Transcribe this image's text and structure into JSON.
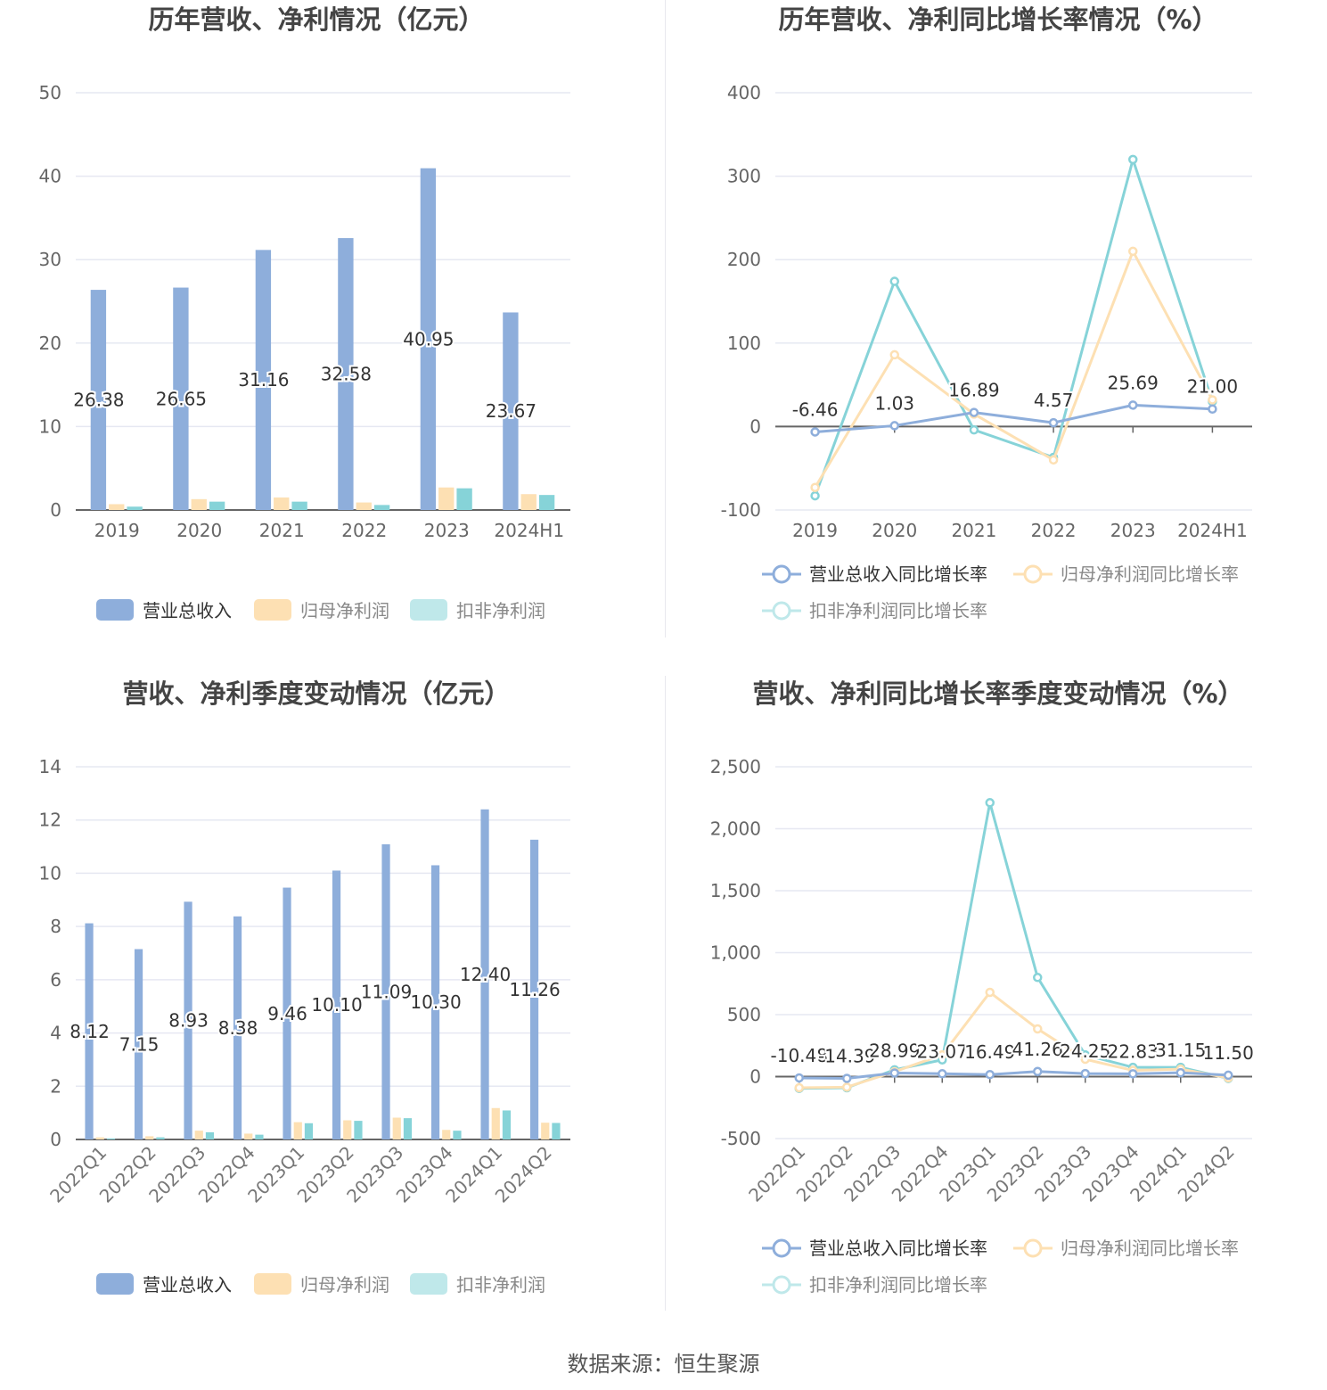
{
  "charts": {
    "annual_amount": {
      "title": "历年营收、净利情况（亿元）",
      "yticks": [
        "0",
        "10",
        "20",
        "30",
        "40",
        "50"
      ]
    },
    "annual_growth": {
      "title": "历年营收、净利同比增长率情况（%）",
      "yticks": [
        "-100",
        "0",
        "100",
        "200",
        "300",
        "400"
      ]
    },
    "quarter_amount": {
      "title": "营收、净利季度变动情况（亿元）",
      "yticks": [
        "0",
        "2",
        "4",
        "6",
        "8",
        "10",
        "12",
        "14"
      ]
    },
    "quarter_growth": {
      "title": "营收、净利同比增长率季度变动情况（%）",
      "yticks": [
        "-500",
        "0",
        "500",
        "1,000",
        "1,500",
        "2,000",
        "2,500"
      ]
    }
  },
  "legend": {
    "amount": [
      "营业总收入",
      "归母净利润",
      "扣非净利润"
    ],
    "growth": [
      "营业总收入同比增长率",
      "归母净利润同比增长率",
      "扣非净利润同比增长率"
    ]
  },
  "colors": {
    "revenue": "#8eaedb",
    "net_profit": "#fde0b3",
    "deducted_profit": "#86d3d8",
    "grid": "#e6e8f2",
    "axis": "#666666"
  },
  "footer": {
    "source": "数据来源：恒生聚源"
  },
  "chart_data": [
    {
      "type": "bar",
      "title": "历年营收、净利情况（亿元）",
      "categories": [
        "2019",
        "2020",
        "2021",
        "2022",
        "2023",
        "2024H1"
      ],
      "ylim": [
        0,
        50
      ],
      "series": [
        {
          "name": "营业总收入",
          "values": [
            26.38,
            26.65,
            31.16,
            32.58,
            40.95,
            23.67
          ],
          "labels": [
            "26.38",
            "26.65",
            "31.16",
            "32.58",
            "40.95",
            "23.67"
          ]
        },
        {
          "name": "归母净利润",
          "values": [
            0.7,
            1.3,
            1.5,
            0.9,
            2.7,
            1.9
          ]
        },
        {
          "name": "扣非净利润",
          "values": [
            0.4,
            1.0,
            1.0,
            0.6,
            2.6,
            1.8
          ]
        }
      ],
      "grid": true,
      "legend": "bottom"
    },
    {
      "type": "line",
      "title": "历年营收、净利同比增长率情况（%）",
      "categories": [
        "2019",
        "2020",
        "2021",
        "2022",
        "2023",
        "2024H1"
      ],
      "ylim": [
        -100,
        400
      ],
      "series": [
        {
          "name": "营业总收入同比增长率",
          "values": [
            -6.46,
            1.03,
            16.89,
            4.57,
            25.69,
            21.0
          ],
          "labels": [
            "-6.46",
            "1.03",
            "16.89",
            "4.57",
            "25.69",
            "21.00"
          ]
        },
        {
          "name": "归母净利润同比增长率",
          "values": [
            -73,
            86,
            15,
            -40,
            210,
            32
          ]
        },
        {
          "name": "扣非净利润同比增长率",
          "values": [
            -83,
            174,
            -4,
            -37,
            320,
            30
          ]
        }
      ],
      "grid": true,
      "legend": "bottom"
    },
    {
      "type": "bar",
      "title": "营收、净利季度变动情况（亿元）",
      "categories": [
        "2022Q1",
        "2022Q2",
        "2022Q3",
        "2022Q4",
        "2023Q1",
        "2023Q2",
        "2023Q3",
        "2023Q4",
        "2024Q1",
        "2024Q2"
      ],
      "ylim": [
        0,
        14
      ],
      "series": [
        {
          "name": "营业总收入",
          "values": [
            8.12,
            7.15,
            8.93,
            8.38,
            9.46,
            10.1,
            11.09,
            10.3,
            12.4,
            11.26
          ],
          "labels": [
            "8.12",
            "7.15",
            "8.93",
            "8.38",
            "9.46",
            "10.10",
            "11.09",
            "10.30",
            "12.40",
            "11.26"
          ]
        },
        {
          "name": "归母净利润",
          "values": [
            0.08,
            0.12,
            0.33,
            0.22,
            0.65,
            0.72,
            0.82,
            0.36,
            1.18,
            0.63
          ]
        },
        {
          "name": "扣非净利润",
          "values": [
            0.04,
            0.08,
            0.27,
            0.18,
            0.61,
            0.7,
            0.8,
            0.33,
            1.09,
            0.62
          ]
        }
      ],
      "grid": true,
      "legend": "bottom"
    },
    {
      "type": "line",
      "title": "营收、净利同比增长率季度变动情况（%）",
      "categories": [
        "2022Q1",
        "2022Q2",
        "2022Q3",
        "2022Q4",
        "2023Q1",
        "2023Q2",
        "2023Q3",
        "2023Q4",
        "2024Q1",
        "2024Q2"
      ],
      "ylim": [
        -500,
        2500
      ],
      "series": [
        {
          "name": "营业总收入同比增长率",
          "values": [
            -10.48,
            -14.39,
            28.99,
            23.07,
            16.49,
            41.26,
            24.25,
            22.83,
            31.15,
            11.5
          ],
          "labels": [
            "-10.48",
            "-14.39",
            "28.99",
            "23.07",
            "16.49",
            "41.26",
            "24.25",
            "22.83",
            "31.15",
            "11.50"
          ]
        },
        {
          "name": "归母净利润同比增长率",
          "values": [
            -90,
            -85,
            40,
            175,
            680,
            385,
            140,
            50,
            60,
            -10
          ]
        },
        {
          "name": "扣非净利润同比增长率",
          "values": [
            -95,
            -90,
            55,
            135,
            2210,
            800,
            175,
            75,
            75,
            -15
          ]
        }
      ],
      "grid": true,
      "legend": "bottom"
    }
  ]
}
